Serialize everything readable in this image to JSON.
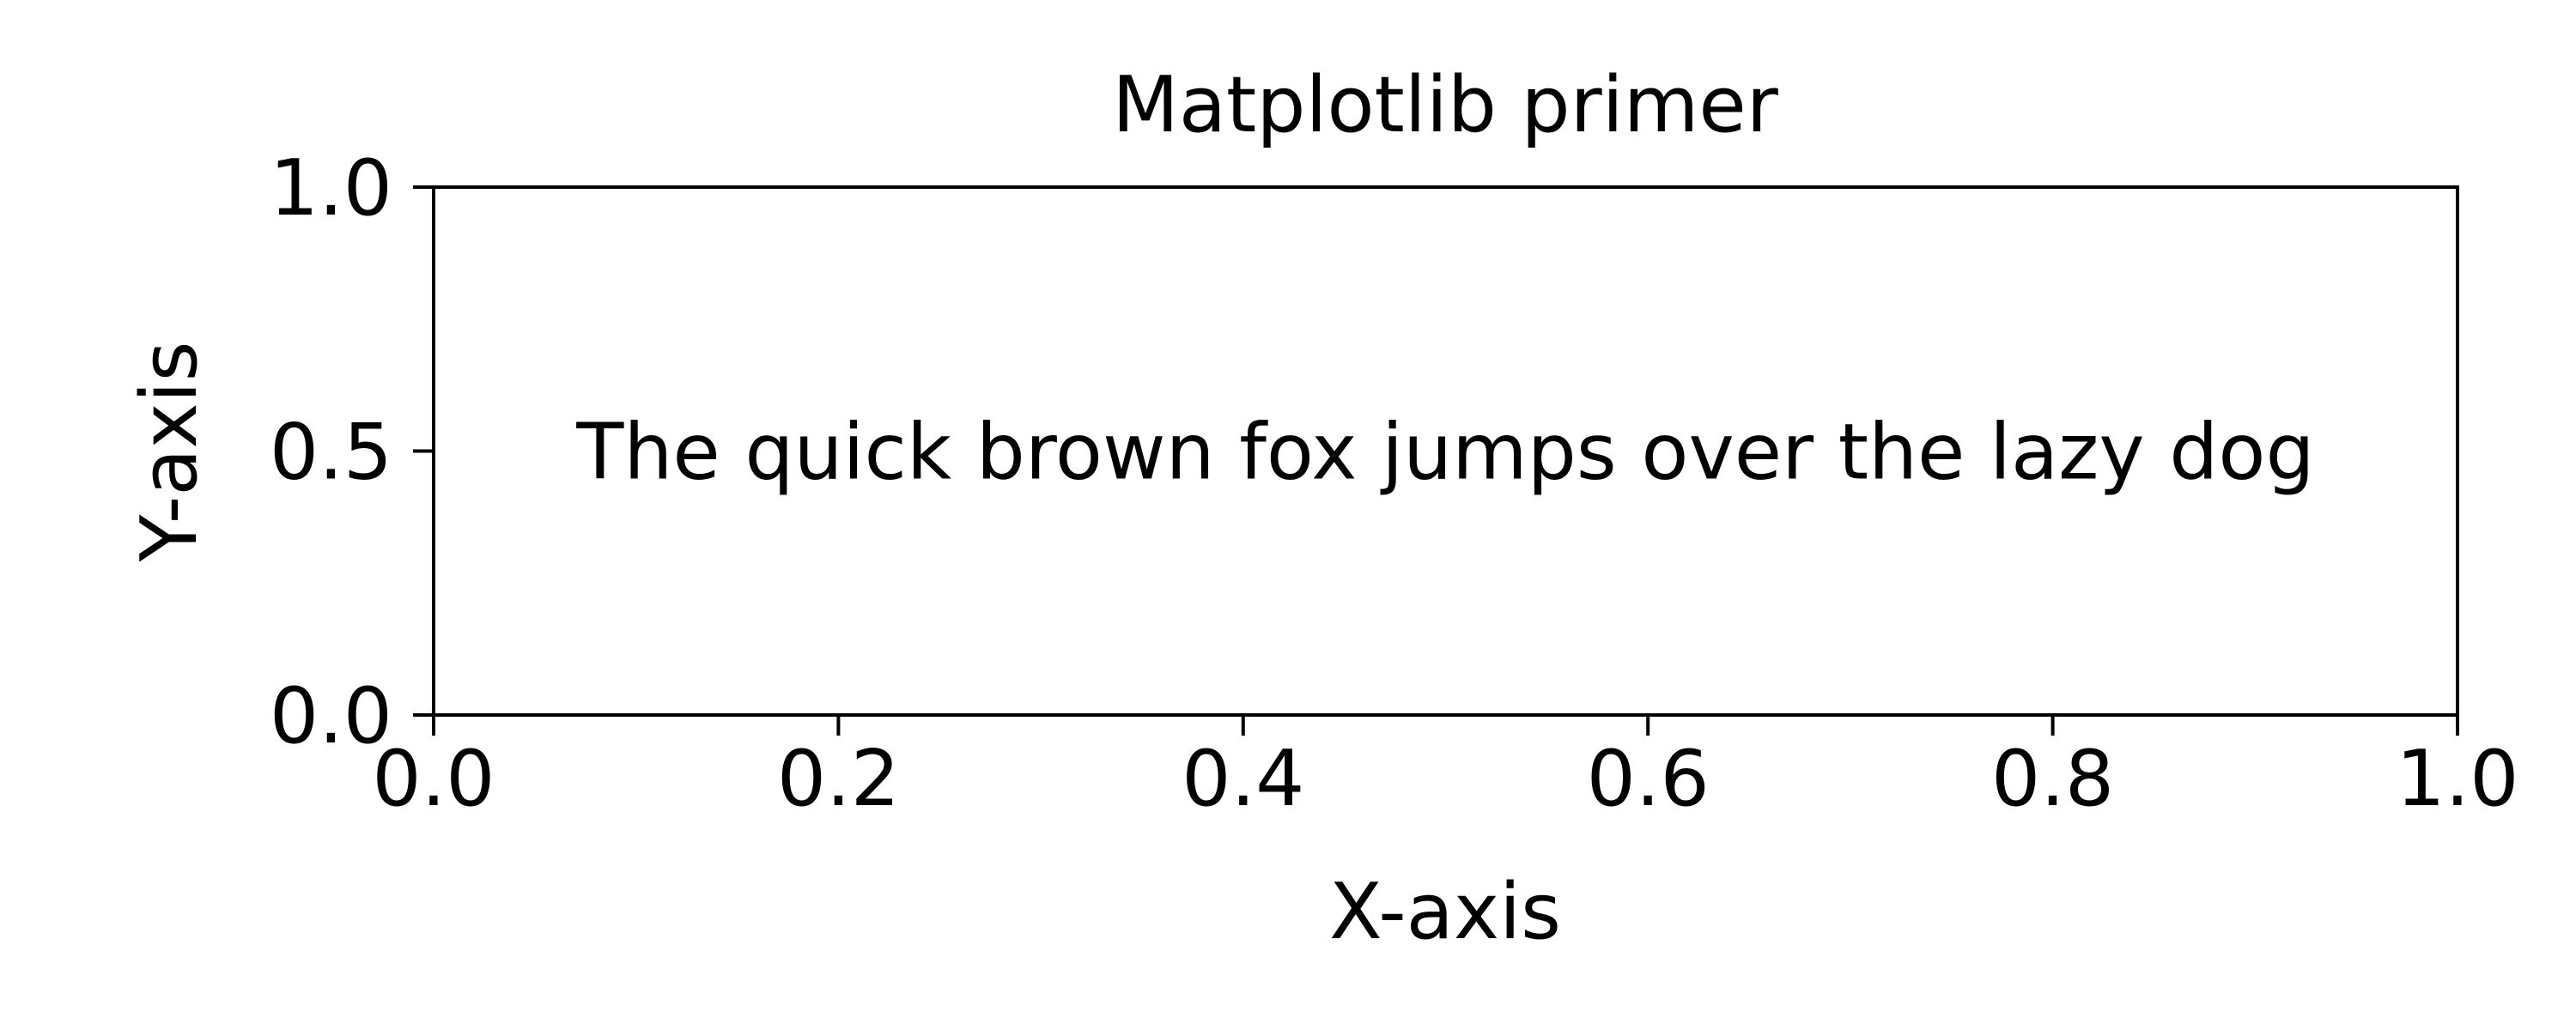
{
  "chart_data": {
    "type": "scatter",
    "title": "Matplotlib primer",
    "xlabel": "X-axis",
    "ylabel": "Y-axis",
    "xlim": [
      0.0,
      1.0
    ],
    "ylim": [
      0.0,
      1.0
    ],
    "grid": false,
    "series": [],
    "x_ticks": [
      {
        "value": 0.0,
        "label": "0.0"
      },
      {
        "value": 0.2,
        "label": "0.2"
      },
      {
        "value": 0.4,
        "label": "0.4"
      },
      {
        "value": 0.6,
        "label": "0.6"
      },
      {
        "value": 0.8,
        "label": "0.8"
      },
      {
        "value": 1.0,
        "label": "1.0"
      }
    ],
    "y_ticks": [
      {
        "value": 0.0,
        "label": "0.0"
      },
      {
        "value": 0.5,
        "label": "0.5"
      },
      {
        "value": 1.0,
        "label": "1.0"
      }
    ],
    "annotations": [
      {
        "text": "The quick brown fox jumps over the lazy dog",
        "x": 0.5,
        "y": 0.5
      }
    ]
  }
}
